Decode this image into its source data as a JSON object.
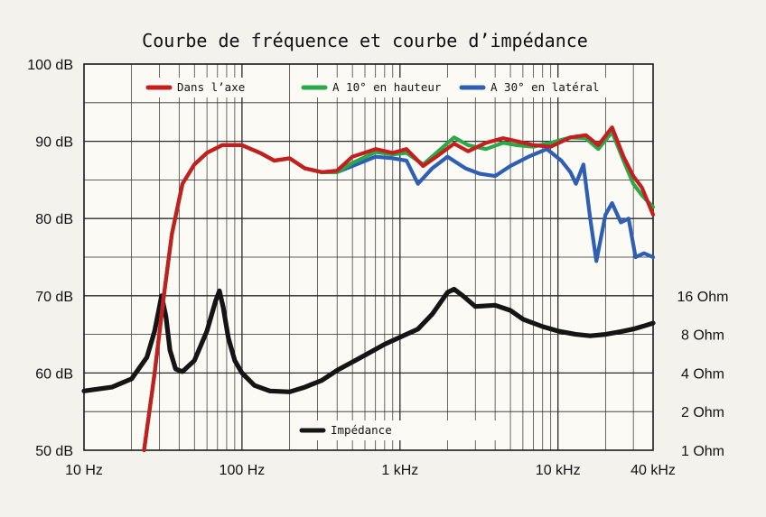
{
  "chart_data": {
    "type": "line",
    "title": "Courbe de fréquence et courbe d’impédance",
    "xlabel": "",
    "ylabel": "",
    "x_scale": "log",
    "xlim": [
      10,
      40000
    ],
    "ylim": [
      50,
      100
    ],
    "grid": true,
    "x_ticks": [
      {
        "value": 10,
        "label": "10 Hz"
      },
      {
        "value": 100,
        "label": "100 Hz"
      },
      {
        "value": 1000,
        "label": "1 kHz"
      },
      {
        "value": 10000,
        "label": "10 kHz"
      },
      {
        "value": 40000,
        "label": "40 kHz"
      }
    ],
    "y_ticks": [
      {
        "value": 50,
        "label": "50 dB"
      },
      {
        "value": 60,
        "label": "60 dB"
      },
      {
        "value": 70,
        "label": "70 dB"
      },
      {
        "value": 80,
        "label": "80 dB"
      },
      {
        "value": 90,
        "label": "90 dB"
      },
      {
        "value": 100,
        "label": "100 dB"
      }
    ],
    "y2_ticks": [
      {
        "value": 1,
        "label": "1 Ohm"
      },
      {
        "value": 2,
        "label": "2 Ohm"
      },
      {
        "value": 4,
        "label": "4 Ohm"
      },
      {
        "value": 8,
        "label": "8 Ohm"
      },
      {
        "value": 16,
        "label": "16 Ohm"
      }
    ],
    "legend_placement": "top",
    "series": [
      {
        "name": "Dans l’axe",
        "color": "#c41e1e",
        "axis": "dB",
        "points": [
          [
            24,
            50
          ],
          [
            28,
            60
          ],
          [
            32,
            70
          ],
          [
            36,
            78
          ],
          [
            42,
            84.5
          ],
          [
            50,
            87
          ],
          [
            60,
            88.5
          ],
          [
            75,
            89.5
          ],
          [
            100,
            89.5
          ],
          [
            130,
            88.5
          ],
          [
            160,
            87.5
          ],
          [
            200,
            87.8
          ],
          [
            250,
            86.5
          ],
          [
            320,
            86
          ],
          [
            400,
            86.2
          ],
          [
            500,
            88
          ],
          [
            700,
            89
          ],
          [
            900,
            88.5
          ],
          [
            1100,
            89
          ],
          [
            1400,
            86.8
          ],
          [
            1700,
            88
          ],
          [
            2200,
            89.7
          ],
          [
            2700,
            88.7
          ],
          [
            3500,
            89.8
          ],
          [
            4500,
            90.4
          ],
          [
            5500,
            90
          ],
          [
            7000,
            89.5
          ],
          [
            9000,
            89.3
          ],
          [
            12000,
            90.5
          ],
          [
            15000,
            90.8
          ],
          [
            18000,
            89.5
          ],
          [
            22000,
            91.8
          ],
          [
            26000,
            88
          ],
          [
            30000,
            85.5
          ],
          [
            34000,
            84
          ],
          [
            40000,
            80.5
          ]
        ]
      },
      {
        "name": "A 10° en hauteur",
        "color": "#2aa84a",
        "axis": "dB",
        "points": [
          [
            24,
            50
          ],
          [
            28,
            60
          ],
          [
            32,
            70
          ],
          [
            36,
            78
          ],
          [
            42,
            84.5
          ],
          [
            50,
            87
          ],
          [
            60,
            88.5
          ],
          [
            75,
            89.5
          ],
          [
            100,
            89.5
          ],
          [
            130,
            88.5
          ],
          [
            160,
            87.5
          ],
          [
            200,
            87.8
          ],
          [
            250,
            86.5
          ],
          [
            320,
            86
          ],
          [
            400,
            86
          ],
          [
            500,
            87.2
          ],
          [
            700,
            88.6
          ],
          [
            900,
            88.3
          ],
          [
            1100,
            88.5
          ],
          [
            1400,
            87
          ],
          [
            1700,
            88.5
          ],
          [
            2200,
            90.5
          ],
          [
            2700,
            89.5
          ],
          [
            3500,
            89
          ],
          [
            4500,
            89.8
          ],
          [
            5500,
            89.5
          ],
          [
            7000,
            89.3
          ],
          [
            9000,
            89.8
          ],
          [
            12000,
            90.5
          ],
          [
            15000,
            90.4
          ],
          [
            18000,
            89
          ],
          [
            22000,
            91.2
          ],
          [
            26000,
            87.5
          ],
          [
            30000,
            84.5
          ],
          [
            34000,
            83
          ],
          [
            40000,
            81.5
          ]
        ]
      },
      {
        "name": "A 30° en latéral",
        "color": "#2e5fb5",
        "axis": "dB",
        "points": [
          [
            24,
            50
          ],
          [
            28,
            60
          ],
          [
            32,
            70
          ],
          [
            36,
            78
          ],
          [
            42,
            84.5
          ],
          [
            50,
            87
          ],
          [
            60,
            88.5
          ],
          [
            75,
            89.5
          ],
          [
            100,
            89.5
          ],
          [
            130,
            88.5
          ],
          [
            160,
            87.5
          ],
          [
            200,
            87.8
          ],
          [
            250,
            86.5
          ],
          [
            320,
            86
          ],
          [
            400,
            86
          ],
          [
            500,
            86.8
          ],
          [
            700,
            88
          ],
          [
            900,
            87.8
          ],
          [
            1100,
            87.5
          ],
          [
            1300,
            84.5
          ],
          [
            1600,
            86.5
          ],
          [
            2000,
            88
          ],
          [
            2600,
            86.5
          ],
          [
            3200,
            85.8
          ],
          [
            4000,
            85.5
          ],
          [
            5000,
            86.8
          ],
          [
            6500,
            88
          ],
          [
            8500,
            89
          ],
          [
            10500,
            87.5
          ],
          [
            12000,
            86
          ],
          [
            13000,
            84.5
          ],
          [
            14500,
            87
          ],
          [
            16000,
            80
          ],
          [
            17500,
            74.5
          ],
          [
            20000,
            80.5
          ],
          [
            22000,
            82
          ],
          [
            25000,
            79.5
          ],
          [
            28000,
            80
          ],
          [
            31000,
            75
          ],
          [
            35000,
            75.5
          ],
          [
            40000,
            75
          ]
        ]
      },
      {
        "name": "Impédance",
        "color": "#151515",
        "axis": "Ohm",
        "points": [
          [
            10,
            2.9
          ],
          [
            15,
            3.1
          ],
          [
            20,
            3.6
          ],
          [
            25,
            5.3
          ],
          [
            28,
            8.5
          ],
          [
            30,
            13
          ],
          [
            31,
            16
          ],
          [
            33,
            11
          ],
          [
            35,
            6
          ],
          [
            38,
            4.3
          ],
          [
            42,
            4.1
          ],
          [
            50,
            5
          ],
          [
            60,
            8.5
          ],
          [
            68,
            14.5
          ],
          [
            72,
            17.5
          ],
          [
            76,
            13
          ],
          [
            82,
            7.5
          ],
          [
            90,
            5
          ],
          [
            100,
            4
          ],
          [
            120,
            3.2
          ],
          [
            150,
            2.9
          ],
          [
            200,
            2.85
          ],
          [
            250,
            3.1
          ],
          [
            320,
            3.5
          ],
          [
            400,
            4.2
          ],
          [
            600,
            5.5
          ],
          [
            800,
            6.7
          ],
          [
            1000,
            7.6
          ],
          [
            1300,
            8.8
          ],
          [
            1600,
            11.5
          ],
          [
            2000,
            17
          ],
          [
            2200,
            18
          ],
          [
            2500,
            16
          ],
          [
            3000,
            13.2
          ],
          [
            4000,
            13.5
          ],
          [
            5000,
            12.3
          ],
          [
            6000,
            10.5
          ],
          [
            8000,
            9.2
          ],
          [
            10000,
            8.5
          ],
          [
            13000,
            8
          ],
          [
            16000,
            7.8
          ],
          [
            20000,
            8
          ],
          [
            25000,
            8.4
          ],
          [
            30000,
            8.8
          ],
          [
            35000,
            9.3
          ],
          [
            40000,
            9.8
          ]
        ]
      }
    ]
  }
}
